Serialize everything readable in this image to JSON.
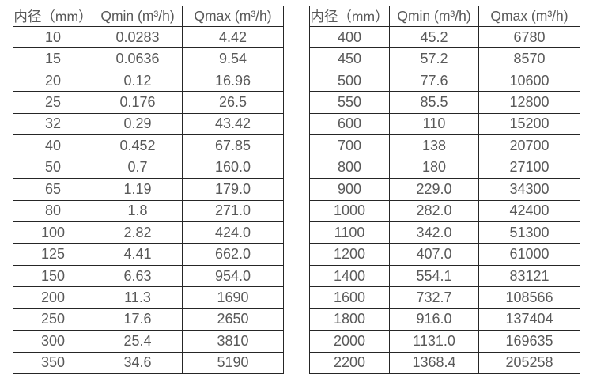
{
  "page": {
    "background_color": "#ffffff",
    "text_color": "#595959",
    "border_color": "#262626"
  },
  "chart_data": [
    {
      "type": "table",
      "name": "diameter-flow-table-left",
      "columns": [
        "内径（mm）",
        "Qmin (m³/h)",
        "Qmax (m³/h)"
      ],
      "rows": [
        [
          "10",
          "0.0283",
          "4.42"
        ],
        [
          "15",
          "0.0636",
          "9.54"
        ],
        [
          "20",
          "0.12",
          "16.96"
        ],
        [
          "25",
          "0.176",
          "26.5"
        ],
        [
          "32",
          "0.29",
          "43.42"
        ],
        [
          "40",
          "0.452",
          "67.85"
        ],
        [
          "50",
          "0.7",
          "160.0"
        ],
        [
          "65",
          "1.19",
          "179.0"
        ],
        [
          "80",
          "1.8",
          "271.0"
        ],
        [
          "100",
          "2.82",
          "424.0"
        ],
        [
          "125",
          "4.41",
          "662.0"
        ],
        [
          "150",
          "6.63",
          "954.0"
        ],
        [
          "200",
          "11.3",
          "1690"
        ],
        [
          "250",
          "17.6",
          "2650"
        ],
        [
          "300",
          "25.4",
          "3810"
        ],
        [
          "350",
          "34.6",
          "5190"
        ]
      ]
    },
    {
      "type": "table",
      "name": "diameter-flow-table-right",
      "columns": [
        "内径（mm）",
        "Qmin (m³/h)",
        "Qmax (m³/h)"
      ],
      "rows": [
        [
          "400",
          "45.2",
          "6780"
        ],
        [
          "450",
          "57.2",
          "8570"
        ],
        [
          "500",
          "77.6",
          "10600"
        ],
        [
          "550",
          "85.5",
          "12800"
        ],
        [
          "600",
          "110",
          "15200"
        ],
        [
          "700",
          "138",
          "20700"
        ],
        [
          "800",
          "180",
          "27100"
        ],
        [
          "900",
          "229.0",
          "34300"
        ],
        [
          "1000",
          "282.0",
          "42400"
        ],
        [
          "1100",
          "342.0",
          "51300"
        ],
        [
          "1200",
          "407.0",
          "61000"
        ],
        [
          "1400",
          "554.1",
          "83121"
        ],
        [
          "1600",
          "732.7",
          "108566"
        ],
        [
          "1800",
          "916.0",
          "137404"
        ],
        [
          "2000",
          "1131.0",
          "169635"
        ],
        [
          "2200",
          "1368.4",
          "205258"
        ]
      ]
    }
  ]
}
